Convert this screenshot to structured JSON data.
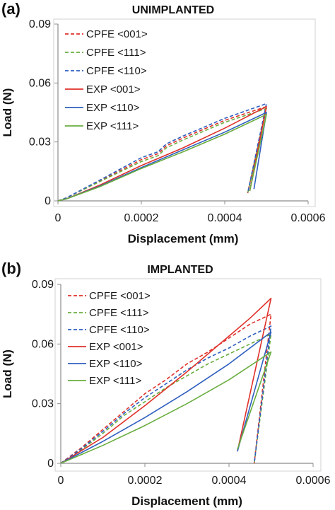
{
  "colors": {
    "red": "#e0312a",
    "green": "#6aad3e",
    "blue": "#2f5fbf",
    "axis": "#8c8c8c",
    "frame": "#d0d0d0"
  },
  "chart_data": [
    {
      "type": "line",
      "panel_label": "(a)",
      "title": "UNIMPLANTED",
      "xlabel": "Displacement (mm)",
      "ylabel": "Load (N)",
      "xlim": [
        0,
        0.0006
      ],
      "ylim": [
        0,
        0.09
      ],
      "xticks": [
        "0",
        "0.0002",
        "0.0004",
        "0.0006"
      ],
      "yticks": [
        "0",
        "0.03",
        "0.06",
        "0.09"
      ],
      "grid": false,
      "legend_position": "top-left",
      "series": [
        {
          "name": "CPFE <001>",
          "color": "red",
          "dash": true,
          "x": [
            0,
            2e-05,
            0.0001,
            0.0002,
            0.00024,
            0.00026,
            0.0003,
            0.0004,
            0.0005,
            0.000455
          ],
          "y": [
            0,
            0.0015,
            0.01,
            0.021,
            0.024,
            0.028,
            0.032,
            0.041,
            0.048,
            0.004
          ]
        },
        {
          "name": "CPFE <111>",
          "color": "green",
          "dash": true,
          "x": [
            0,
            2e-05,
            0.0001,
            0.0002,
            0.00024,
            0.00026,
            0.0003,
            0.0004,
            0.0005,
            0.000455
          ],
          "y": [
            0,
            0.0015,
            0.0098,
            0.02,
            0.023,
            0.027,
            0.031,
            0.04,
            0.047,
            0.004
          ]
        },
        {
          "name": "CPFE <110>",
          "color": "blue",
          "dash": true,
          "x": [
            0,
            2e-05,
            0.0001,
            0.0002,
            0.00024,
            0.00026,
            0.0003,
            0.0004,
            0.0005,
            0.000455
          ],
          "y": [
            0,
            0.0015,
            0.0105,
            0.022,
            0.025,
            0.029,
            0.033,
            0.042,
            0.0495,
            0.004
          ]
        },
        {
          "name": "EXP <001>",
          "color": "red",
          "dash": false,
          "x": [
            0,
            2e-05,
            0.0001,
            0.0002,
            0.0003,
            0.0004,
            0.0005,
            0.00046
          ],
          "y": [
            0,
            0.001,
            0.008,
            0.018,
            0.027,
            0.037,
            0.048,
            0.005
          ]
        },
        {
          "name": "EXP <110>",
          "color": "blue",
          "dash": false,
          "x": [
            0,
            2e-05,
            0.0001,
            0.0002,
            0.0003,
            0.0004,
            0.0005,
            0.00047
          ],
          "y": [
            0,
            0.001,
            0.0075,
            0.017,
            0.026,
            0.035,
            0.045,
            0.006
          ]
        },
        {
          "name": "EXP <111>",
          "color": "green",
          "dash": false,
          "x": [
            0,
            2e-05,
            0.0001,
            0.0002,
            0.0003,
            0.0004,
            0.0005,
            0.00046
          ],
          "y": [
            0,
            0.001,
            0.0072,
            0.0165,
            0.025,
            0.034,
            0.044,
            0.005
          ]
        }
      ]
    },
    {
      "type": "line",
      "panel_label": "(b)",
      "title": "IMPLANTED",
      "xlabel": "Displacement (mm)",
      "ylabel": "Load (N)",
      "xlim": [
        0,
        0.0006
      ],
      "ylim": [
        0,
        0.09
      ],
      "xticks": [
        "0",
        "0.0002",
        "0.0004",
        "0.0006"
      ],
      "yticks": [
        "0",
        "0.03",
        "0.06",
        "0.09"
      ],
      "grid": false,
      "legend_position": "top-left",
      "series": [
        {
          "name": "CPFE <001>",
          "color": "red",
          "dash": true,
          "x": [
            0,
            5e-05,
            0.0001,
            0.00015,
            0.0002,
            0.00025,
            0.0003,
            0.00035,
            0.0004,
            0.00045,
            0.0005,
            0.00046
          ],
          "y": [
            0,
            0.008,
            0.017,
            0.026,
            0.035,
            0.042,
            0.05,
            0.056,
            0.063,
            0.07,
            0.075,
            0
          ]
        },
        {
          "name": "CPFE <111>",
          "color": "green",
          "dash": true,
          "x": [
            0,
            5e-05,
            0.0001,
            0.00015,
            0.0002,
            0.00025,
            0.0003,
            0.00035,
            0.0004,
            0.00045,
            0.0005,
            0.00046
          ],
          "y": [
            0,
            0.007,
            0.015,
            0.024,
            0.031,
            0.038,
            0.044,
            0.05,
            0.055,
            0.06,
            0.065,
            0
          ]
        },
        {
          "name": "CPFE <110>",
          "color": "blue",
          "dash": true,
          "x": [
            0,
            5e-05,
            0.0001,
            0.00015,
            0.0002,
            0.00025,
            0.0003,
            0.00035,
            0.0004,
            0.00045,
            0.0005,
            0.00046
          ],
          "y": [
            0,
            0.0075,
            0.016,
            0.025,
            0.033,
            0.04,
            0.047,
            0.053,
            0.058,
            0.064,
            0.069,
            0
          ]
        },
        {
          "name": "EXP <001>",
          "color": "red",
          "dash": false,
          "x": [
            0,
            0.0001,
            0.0002,
            0.0003,
            0.0004,
            0.00045,
            0.0005,
            0.00042
          ],
          "y": [
            0,
            0.013,
            0.029,
            0.046,
            0.064,
            0.073,
            0.083,
            0.006
          ]
        },
        {
          "name": "EXP <110>",
          "color": "blue",
          "dash": false,
          "x": [
            0,
            0.0001,
            0.0002,
            0.0003,
            0.0004,
            0.0005,
            0.00042
          ],
          "y": [
            0,
            0.011,
            0.023,
            0.036,
            0.05,
            0.066,
            0.006
          ]
        },
        {
          "name": "EXP <111>",
          "color": "green",
          "dash": false,
          "x": [
            0,
            0.0001,
            0.0002,
            0.0003,
            0.0004,
            0.0005,
            0.00042
          ],
          "y": [
            0,
            0.009,
            0.019,
            0.03,
            0.042,
            0.056,
            0.007
          ]
        }
      ]
    }
  ]
}
